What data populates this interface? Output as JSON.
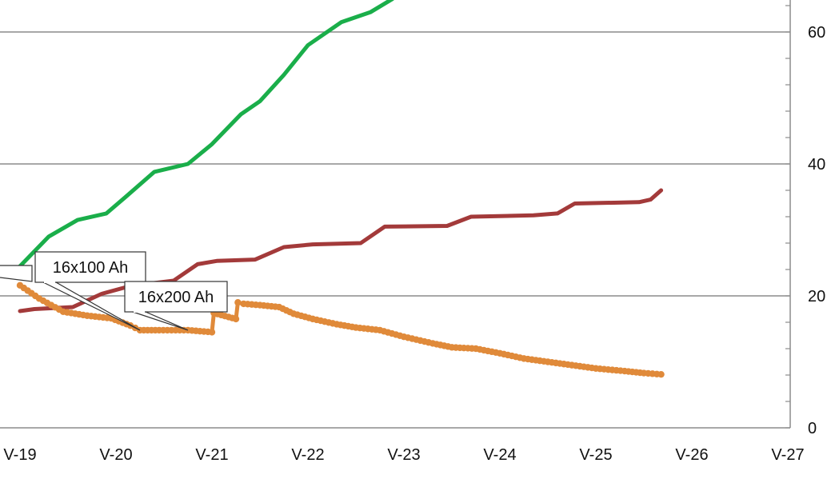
{
  "chart_data": {
    "type": "line",
    "title": "",
    "xlabel": "",
    "ylabel": "",
    "x_categories": [
      "V-19",
      "V-20",
      "V-21",
      "V-22",
      "V-23",
      "V-24",
      "V-25",
      "V-26",
      "V-27"
    ],
    "x_range": [
      19,
      27
    ],
    "ylim": [
      0,
      65
    ],
    "y_ticks": [
      0,
      20,
      40,
      60
    ],
    "y_axis_position": "right",
    "grid": "horizontal",
    "colors": {
      "green": "#1aae4a",
      "red": "#a33a3a",
      "orange": "#e08a3a",
      "grid": "#8c8c8c"
    },
    "series": [
      {
        "color_key": "green",
        "marker": "none",
        "points": [
          [
            19.0,
            24.5
          ],
          [
            19.3,
            29.0
          ],
          [
            19.6,
            31.5
          ],
          [
            19.9,
            32.5
          ],
          [
            20.1,
            35.0
          ],
          [
            20.4,
            38.8
          ],
          [
            20.75,
            40.0
          ],
          [
            21.0,
            43.0
          ],
          [
            21.3,
            47.5
          ],
          [
            21.5,
            49.5
          ],
          [
            21.75,
            53.5
          ],
          [
            22.0,
            58.0
          ],
          [
            22.35,
            61.5
          ],
          [
            22.65,
            63.0
          ],
          [
            22.88,
            65.0
          ]
        ]
      },
      {
        "color_key": "red",
        "marker": "none",
        "points": [
          [
            19.0,
            17.7
          ],
          [
            19.15,
            18.0
          ],
          [
            19.55,
            18.3
          ],
          [
            19.85,
            20.3
          ],
          [
            20.15,
            21.5
          ],
          [
            20.6,
            22.3
          ],
          [
            20.85,
            24.8
          ],
          [
            21.05,
            25.3
          ],
          [
            21.45,
            25.5
          ],
          [
            21.75,
            27.4
          ],
          [
            22.05,
            27.8
          ],
          [
            22.55,
            28.0
          ],
          [
            22.8,
            30.5
          ],
          [
            23.45,
            30.6
          ],
          [
            23.7,
            32.0
          ],
          [
            24.35,
            32.2
          ],
          [
            24.6,
            32.5
          ],
          [
            24.78,
            34.0
          ],
          [
            25.45,
            34.2
          ],
          [
            25.57,
            34.6
          ],
          [
            25.68,
            36.0
          ]
        ]
      },
      {
        "color_key": "orange",
        "marker": "dots",
        "points": [
          [
            19.0,
            21.6
          ],
          [
            19.2,
            19.6
          ],
          [
            19.45,
            17.6
          ],
          [
            19.7,
            17.0
          ],
          [
            19.95,
            16.6
          ],
          [
            20.15,
            15.5
          ],
          [
            20.25,
            14.8
          ],
          [
            20.45,
            14.8
          ],
          [
            20.75,
            14.8
          ],
          [
            21.0,
            14.5
          ],
          [
            21.02,
            17.4
          ],
          [
            21.25,
            16.5
          ],
          [
            21.27,
            19.0
          ],
          [
            21.33,
            18.8
          ],
          [
            21.5,
            18.6
          ],
          [
            21.7,
            18.3
          ],
          [
            21.85,
            17.3
          ],
          [
            22.05,
            16.5
          ],
          [
            22.3,
            15.7
          ],
          [
            22.5,
            15.2
          ],
          [
            22.75,
            14.8
          ],
          [
            23.0,
            13.8
          ],
          [
            23.3,
            12.8
          ],
          [
            23.5,
            12.2
          ],
          [
            23.75,
            12.0
          ],
          [
            24.0,
            11.3
          ],
          [
            24.25,
            10.5
          ],
          [
            24.5,
            10.0
          ],
          [
            24.75,
            9.5
          ],
          [
            25.0,
            9.0
          ],
          [
            25.3,
            8.6
          ],
          [
            25.5,
            8.3
          ],
          [
            25.68,
            8.1
          ]
        ]
      }
    ],
    "annotations": [
      {
        "text": "16x100 Ah",
        "point": [
          20.25,
          14.8
        ]
      },
      {
        "text": "16x200 Ah",
        "point": [
          20.75,
          14.8
        ]
      }
    ]
  }
}
